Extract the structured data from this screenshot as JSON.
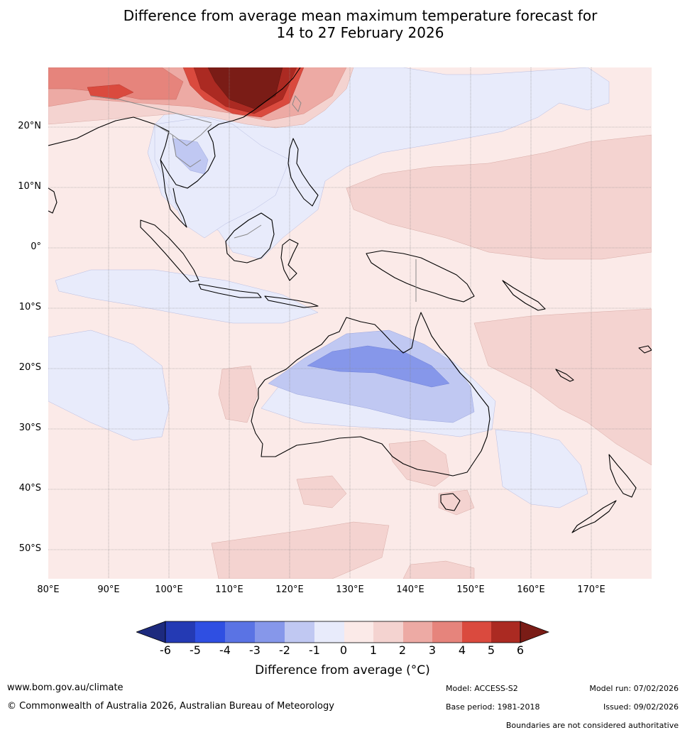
{
  "title": {
    "line1": "Difference from average mean maximum temperature forecast for",
    "line2": "14 to 27 February 2026"
  },
  "map": {
    "lat_labels": [
      "20°N",
      "10°N",
      "0°",
      "10°S",
      "20°S",
      "30°S",
      "40°S",
      "50°S"
    ],
    "lon_labels": [
      "80°E",
      "90°E",
      "100°E",
      "110°E",
      "120°E",
      "130°E",
      "140°E",
      "150°E",
      "160°E",
      "170°E"
    ],
    "colors": {
      "neg6": "#1d2a7e",
      "neg5": "#243ab4",
      "neg4": "#2f4fe2",
      "neg3": "#5a73e4",
      "neg2": "#8697ea",
      "neg1": "#c0c8f2",
      "neg0": "#e8ebfb",
      "pos0": "#fbeae8",
      "pos1": "#f4d3d0",
      "pos2": "#edaaa4",
      "pos3": "#e6847c",
      "pos4": "#da4a3e",
      "pos5": "#ab2a22",
      "pos6": "#7a1c16",
      "coast": "#000000",
      "border": "#888888",
      "grid": "#888888"
    }
  },
  "colorbar": {
    "ticks": [
      "-6",
      "-5",
      "-4",
      "-3",
      "-2",
      "-1",
      "0",
      "1",
      "2",
      "3",
      "4",
      "5",
      "6"
    ],
    "label": "Difference from average (°C)"
  },
  "footer": {
    "website": "www.bom.gov.au/climate",
    "copyright": "© Commonwealth of Australia 2026, Australian Bureau of Meteorology",
    "model": "Model: ACCESS-S2",
    "base_period": "Base period: 1981-2018",
    "model_run": "Model run: 07/02/2026",
    "issued": "Issued: 09/02/2026",
    "disclaimer": "Boundaries are not considered authoritative"
  }
}
